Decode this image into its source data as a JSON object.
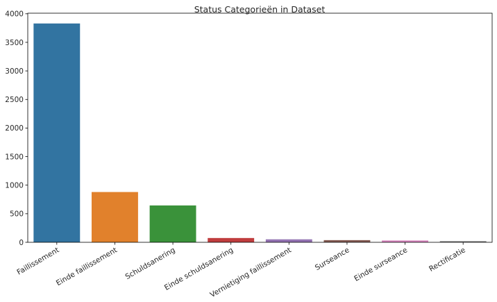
{
  "chart_data": {
    "type": "bar",
    "title": "Status Categorieën in Dataset",
    "xlabel": "",
    "ylabel": "",
    "categories": [
      "Faillissement",
      "Einde faillissement",
      "Schuldsanering",
      "Einde schuldsanering",
      "Vernietiging faillissement",
      "Surseance",
      "Einde surseance",
      "Rectificatie"
    ],
    "values": [
      3830,
      880,
      645,
      75,
      52,
      38,
      32,
      20
    ],
    "colors": [
      "#3274a1",
      "#e1812c",
      "#3a923a",
      "#c03d3e",
      "#9372b2",
      "#845b53",
      "#d684bd",
      "#7f7f7f"
    ],
    "ylim": [
      0,
      4010
    ],
    "yticks": [
      0,
      500,
      1000,
      1500,
      2000,
      2500,
      3000,
      3500,
      4000
    ],
    "grid": false,
    "legend": "none",
    "xtick_rotation": -30
  }
}
